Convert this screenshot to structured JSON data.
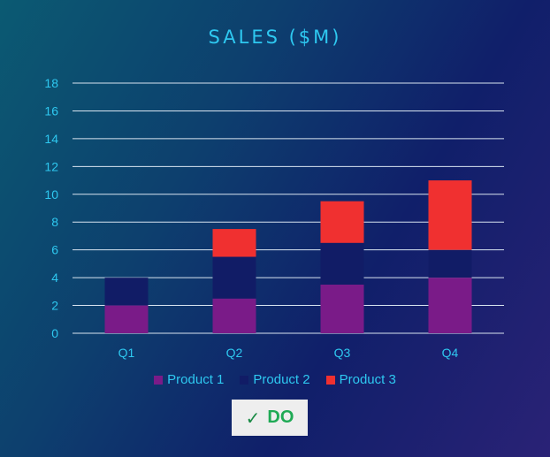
{
  "chart_data": {
    "type": "bar",
    "stacked": true,
    "title": "SALES ($M)",
    "xlabel": "",
    "ylabel": "",
    "categories": [
      "Q1",
      "Q2",
      "Q3",
      "Q4"
    ],
    "ylim": [
      0,
      18
    ],
    "yticks": [
      0,
      2,
      4,
      6,
      8,
      10,
      12,
      14,
      16,
      18
    ],
    "grid": true,
    "legend_position": "bottom",
    "series": [
      {
        "name": "Product 1",
        "values": [
          2,
          2.5,
          3.5,
          4
        ],
        "color": "#7a1b88"
      },
      {
        "name": "Product 2",
        "values": [
          2,
          3,
          3,
          2
        ],
        "color": "#111c66"
      },
      {
        "name": "Product 3",
        "values": [
          0,
          2,
          3,
          5
        ],
        "color": "#f03030"
      }
    ]
  },
  "badge": {
    "icon": "checkmark-icon",
    "icon_glyph": "✓",
    "label": "DO",
    "color": "#1faa55"
  }
}
